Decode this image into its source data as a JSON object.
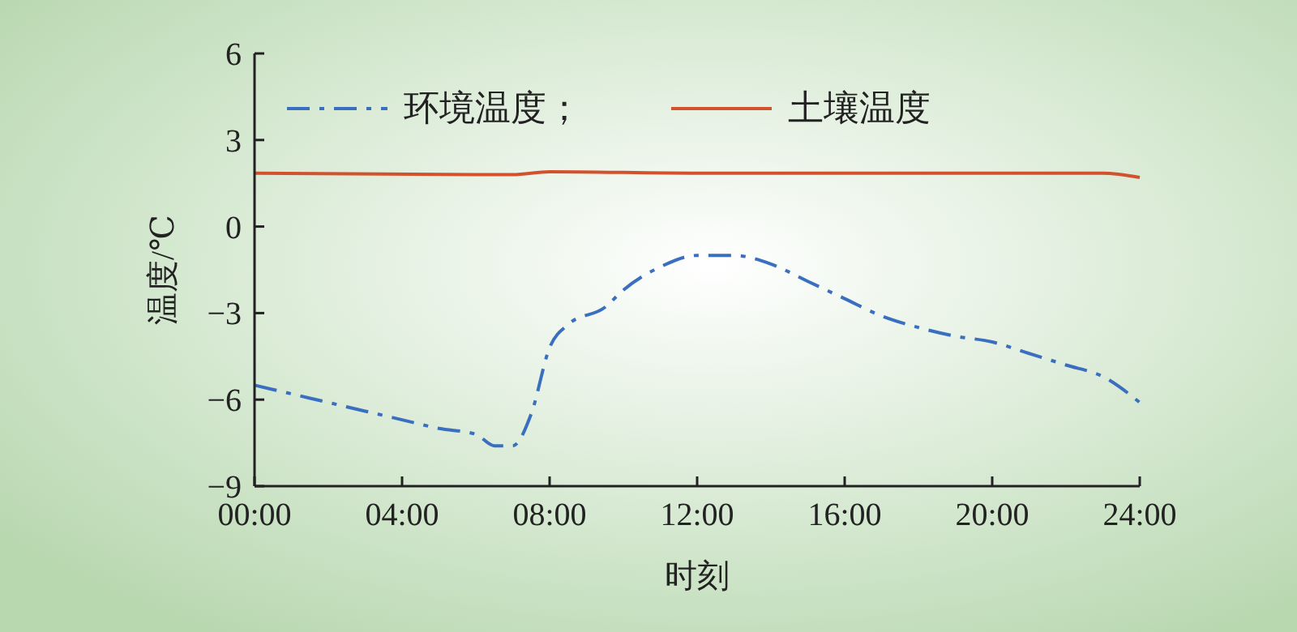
{
  "chart_data": {
    "type": "line",
    "xlabel": "时刻",
    "ylabel": "温度/℃",
    "xlim": [
      0,
      24
    ],
    "xticks": [
      {
        "value": 0,
        "label": "00:00"
      },
      {
        "value": 4,
        "label": "04:00"
      },
      {
        "value": 8,
        "label": "08:00"
      },
      {
        "value": 12,
        "label": "12:00"
      },
      {
        "value": 16,
        "label": "16:00"
      },
      {
        "value": 20,
        "label": "20:00"
      },
      {
        "value": 24,
        "label": "24:00"
      }
    ],
    "ylim": [
      -9,
      6
    ],
    "yticks": [
      -9,
      -6,
      -3,
      0,
      3,
      6
    ],
    "grid": false,
    "legend": "top left",
    "marker": "none",
    "series": [
      {
        "name": "环境温度；",
        "color": "#3a6fc0",
        "line_style": "dashed",
        "x": [
          0,
          1,
          2,
          3,
          4,
          5,
          6,
          6.5,
          7,
          7.5,
          8,
          8.5,
          9.5,
          10,
          11,
          12,
          13,
          14,
          15,
          16,
          17,
          18,
          19,
          20,
          21,
          22,
          23,
          24
        ],
        "values": [
          -5.5,
          -5.8,
          -6.1,
          -6.4,
          -6.7,
          -7.0,
          -7.2,
          -7.6,
          -7.6,
          -6.5,
          -4.2,
          -3.4,
          -2.8,
          -2.2,
          -1.4,
          -1.0,
          -1.0,
          -1.3,
          -1.9,
          -2.5,
          -3.1,
          -3.5,
          -3.8,
          -4.0,
          -4.4,
          -4.8,
          -5.2,
          -6.1
        ]
      },
      {
        "name": "土壤温度",
        "color": "#d2522e",
        "line_style": "solid",
        "x": [
          0,
          6,
          7,
          8,
          12,
          20,
          23,
          24
        ],
        "values": [
          1.85,
          1.8,
          1.8,
          1.9,
          1.85,
          1.85,
          1.85,
          1.7
        ]
      }
    ]
  }
}
